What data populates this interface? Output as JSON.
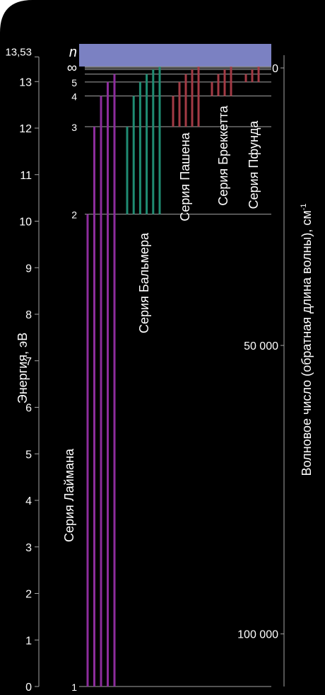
{
  "chart_data": {
    "type": "diagram",
    "title": "",
    "left_axis": {
      "label": "Энергия, эВ",
      "unit": "eV",
      "range": [
        0,
        13.53
      ],
      "ticks": [
        {
          "value": 0,
          "label": "0"
        },
        {
          "value": 1,
          "label": "1"
        },
        {
          "value": 2,
          "label": "2"
        },
        {
          "value": 3,
          "label": "3"
        },
        {
          "value": 4,
          "label": "4"
        },
        {
          "value": 5,
          "label": "5"
        },
        {
          "value": 6,
          "label": "6"
        },
        {
          "value": 7,
          "label": "7"
        },
        {
          "value": 8,
          "label": "8"
        },
        {
          "value": 9,
          "label": "9"
        },
        {
          "value": 10,
          "label": "10"
        },
        {
          "value": 11,
          "label": "11"
        },
        {
          "value": 12,
          "label": "12"
        },
        {
          "value": 13,
          "label": "13"
        },
        {
          "value": 13.53,
          "label": "13,53"
        }
      ]
    },
    "right_axis": {
      "label_main": "Волновое число (обратная длина волны), см",
      "label_sup": "-1",
      "ticks": [
        {
          "energy": 13.53,
          "label": "0"
        },
        {
          "energy": 7.33,
          "label": "50 000"
        },
        {
          "energy": 1.13,
          "label": "100 000"
        }
      ]
    },
    "levels": [
      {
        "n": 1,
        "label": "1",
        "energy": 0
      },
      {
        "n": 2,
        "label": "2",
        "energy": 10.15
      },
      {
        "n": 3,
        "label": "3",
        "energy": 12.03
      },
      {
        "n": 4,
        "label": "4",
        "energy": 12.69
      },
      {
        "n": 5,
        "label": "5",
        "energy": 12.99
      },
      {
        "n": 6,
        "label": "",
        "energy": 13.16
      },
      {
        "n": 7,
        "label": "",
        "energy": 13.26
      },
      {
        "n": 8,
        "label": "",
        "energy": 13.32
      },
      {
        "n": "inf",
        "label": "∞",
        "energy": 13.53
      }
    ],
    "n_header": "n",
    "series": [
      {
        "name": "Серия Лаймана",
        "color": "#8c2c9c",
        "lower_level": 1,
        "upper_levels": [
          2,
          3,
          4,
          5,
          6
        ]
      },
      {
        "name": "Серия Бальмера",
        "color": "#1f8c72",
        "lower_level": 2,
        "upper_levels": [
          3,
          4,
          5,
          6,
          7,
          8
        ]
      },
      {
        "name": "Серия Пашена",
        "color": "#a33a45",
        "lower_level": 3,
        "upper_levels": [
          4,
          5,
          6,
          7,
          8
        ]
      },
      {
        "name": "Серия Брекketta",
        "color": "#a33a45",
        "lower_level": 4,
        "upper_levels": [
          5,
          6,
          7,
          8
        ]
      },
      {
        "name": "Серия Пфунда",
        "color": "#a33a45",
        "lower_level": 5,
        "upper_levels": [
          6,
          7,
          8
        ]
      }
    ],
    "colors": {
      "background": "#000000",
      "frame": "#ffffff",
      "level_line": "#a5a5a5",
      "axis_line": "#a5a5a5",
      "continuum": "#7b81c2"
    }
  }
}
